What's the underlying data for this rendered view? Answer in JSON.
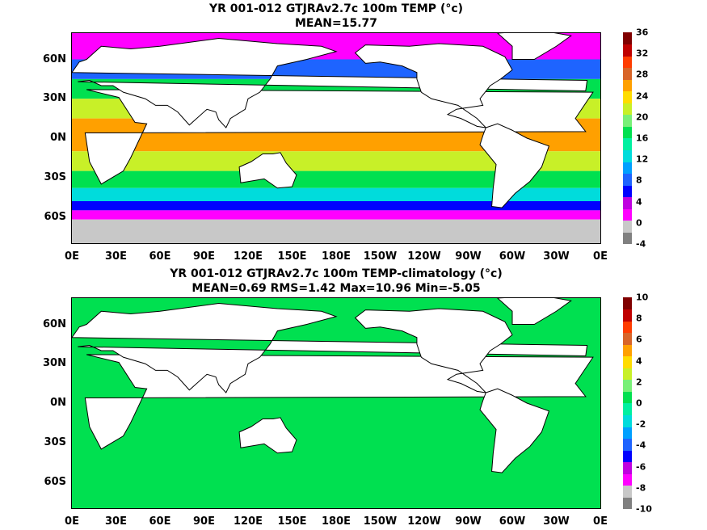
{
  "chart_data": [
    {
      "type": "heatmap",
      "title": "YR 001-012 GTJRAv2.7c 100m TEMP (°c)",
      "subtitle": "MEAN=15.77",
      "xlim": [
        0,
        360
      ],
      "ylim": [
        -80,
        80
      ],
      "x_ticks": [
        "0E",
        "30E",
        "60E",
        "90E",
        "120E",
        "150E",
        "180E",
        "150W",
        "120W",
        "90W",
        "60W",
        "30W",
        "0E"
      ],
      "y_ticks": [
        "60N",
        "30N",
        "0N",
        "30S",
        "60S"
      ],
      "y_tick_values": [
        60,
        30,
        0,
        -30,
        -60
      ],
      "colorbar": {
        "labels": [
          "36",
          "32",
          "28",
          "24",
          "20",
          "16",
          "12",
          "8",
          "4",
          "0",
          "-4"
        ],
        "min": -4,
        "max": 36,
        "colors": [
          "#808080",
          "#c8c8c8",
          "#ff00ff",
          "#c000e0",
          "#0000ff",
          "#1e64ff",
          "#00a0ff",
          "#00dcdc",
          "#00f0a0",
          "#00e050",
          "#78f078",
          "#c8f028",
          "#ffdc00",
          "#ffa000",
          "#d86428",
          "#ff3c00",
          "#c00000",
          "#800000"
        ]
      },
      "field_bands": [
        {
          "lat": [
            60,
            80
          ],
          "value": 2
        },
        {
          "lat": [
            45,
            60
          ],
          "value": 8
        },
        {
          "lat": [
            30,
            45
          ],
          "value": 16
        },
        {
          "lat": [
            15,
            30
          ],
          "value": 22
        },
        {
          "lat": [
            -10,
            15
          ],
          "value": 26
        },
        {
          "lat": [
            -25,
            -10
          ],
          "value": 22
        },
        {
          "lat": [
            -38,
            -25
          ],
          "value": 18
        },
        {
          "lat": [
            -48,
            -38
          ],
          "value": 12
        },
        {
          "lat": [
            -55,
            -48
          ],
          "value": 6
        },
        {
          "lat": [
            -62,
            -55
          ],
          "value": 2
        },
        {
          "lat": [
            -80,
            -62
          ],
          "value": 0
        }
      ]
    },
    {
      "type": "heatmap",
      "title": "YR 001-012 GTJRAv2.7c 100m TEMP-climatology (°c)",
      "subtitle": "MEAN=0.69   RMS=1.42   Max=10.96   Min=-5.05",
      "xlim": [
        0,
        360
      ],
      "ylim": [
        -80,
        80
      ],
      "x_ticks": [
        "0E",
        "30E",
        "60E",
        "90E",
        "120E",
        "150E",
        "180E",
        "150W",
        "120W",
        "90W",
        "60W",
        "30W",
        "0E"
      ],
      "y_ticks": [
        "60N",
        "30N",
        "0N",
        "30S",
        "60S"
      ],
      "y_tick_values": [
        60,
        30,
        0,
        -30,
        -60
      ],
      "colorbar": {
        "labels": [
          "10",
          "8",
          "6",
          "4",
          "2",
          "0",
          "-2",
          "-4",
          "-6",
          "-8",
          "-10"
        ],
        "min": -10,
        "max": 10,
        "colors": [
          "#808080",
          "#c8c8c8",
          "#ff00ff",
          "#c000e0",
          "#0000ff",
          "#1e64ff",
          "#00a0ff",
          "#00dcdc",
          "#00f0a0",
          "#00e050",
          "#78f078",
          "#c8f028",
          "#ffdc00",
          "#ffa000",
          "#d86428",
          "#ff3c00",
          "#c00000",
          "#800000"
        ]
      },
      "field_bands": [
        {
          "lat": [
            -80,
            80
          ],
          "value": 0.7
        }
      ]
    }
  ]
}
